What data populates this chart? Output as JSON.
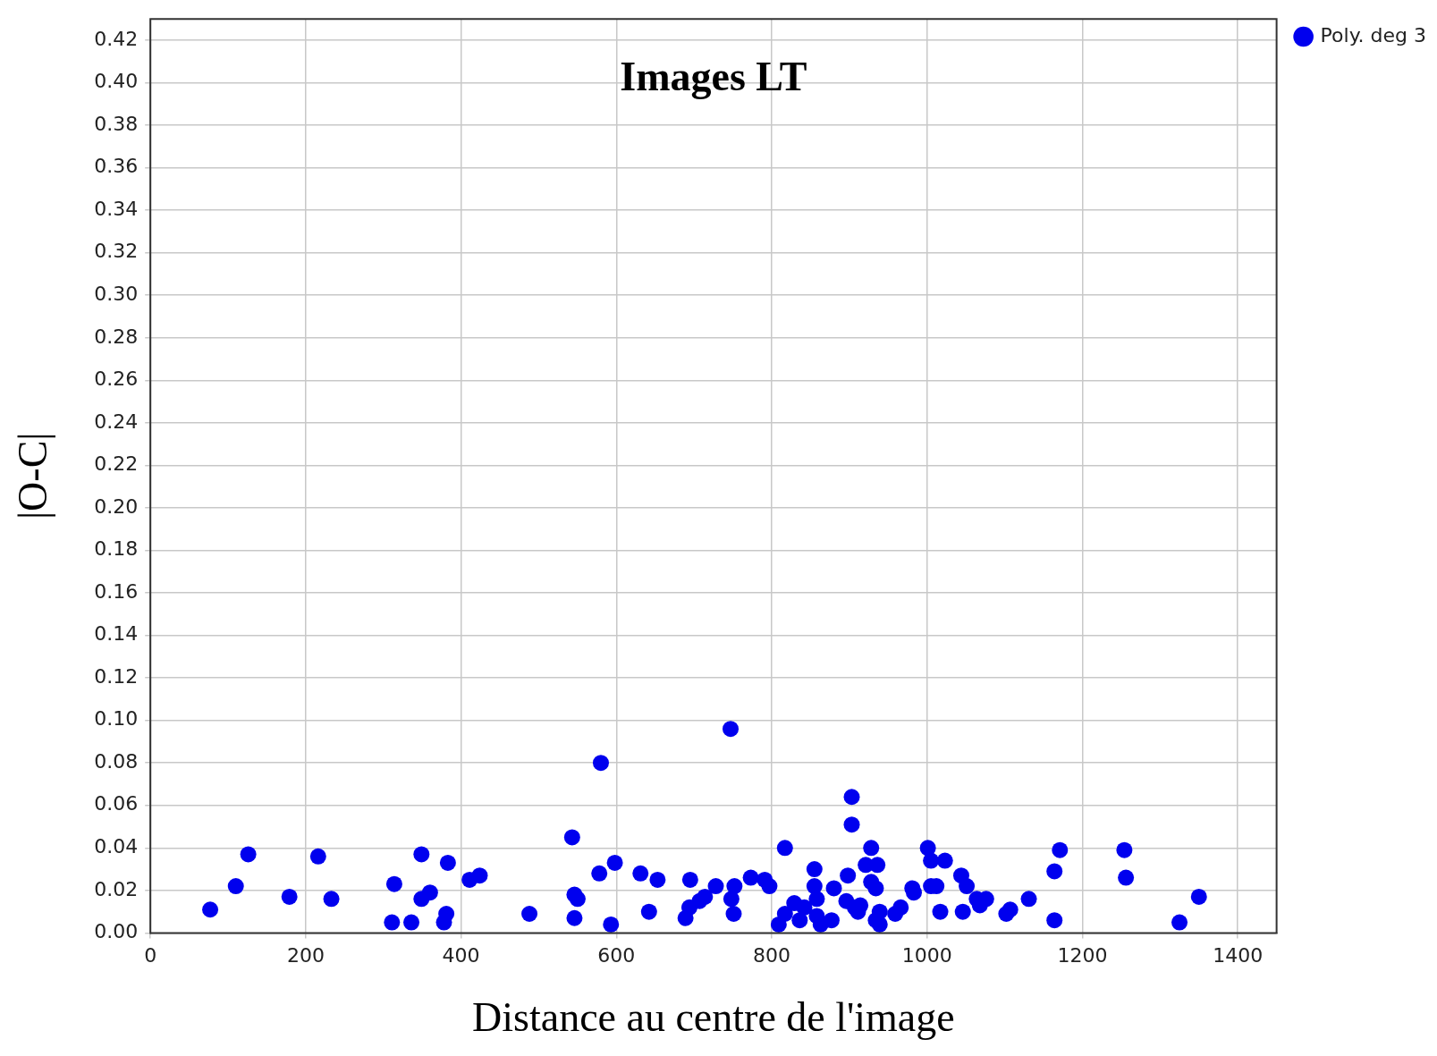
{
  "chart_data": {
    "type": "scatter",
    "title": "Images LT",
    "xlabel": "Distance au centre de l'image",
    "ylabel": "|O-C|",
    "xlim": [
      0,
      1450
    ],
    "xticks": [
      0,
      200,
      400,
      600,
      800,
      1000,
      1200,
      1400
    ],
    "ylim": [
      0,
      0.43
    ],
    "yticks": [
      {
        "value": 0,
        "label": "0.00"
      },
      {
        "value": 0.02,
        "label": "0.02"
      },
      {
        "value": 0.04,
        "label": "0.04"
      },
      {
        "value": 0.06,
        "label": "0.06"
      },
      {
        "value": 0.08,
        "label": "0.08"
      },
      {
        "value": 0.1,
        "label": "0.10"
      },
      {
        "value": 0.12,
        "label": "0.12"
      },
      {
        "value": 0.14,
        "label": "0.14"
      },
      {
        "value": 0.16,
        "label": "0.16"
      },
      {
        "value": 0.18,
        "label": "0.18"
      },
      {
        "value": 0.2,
        "label": "0.20"
      },
      {
        "value": 0.22,
        "label": "0.22"
      },
      {
        "value": 0.24,
        "label": "0.24"
      },
      {
        "value": 0.26,
        "label": "0.26"
      },
      {
        "value": 0.28,
        "label": "0.28"
      },
      {
        "value": 0.3,
        "label": "0.30"
      },
      {
        "value": 0.32,
        "label": "0.32"
      },
      {
        "value": 0.34,
        "label": "0.34"
      },
      {
        "value": 0.36,
        "label": "0.36"
      },
      {
        "value": 0.38,
        "label": "0.38"
      },
      {
        "value": 0.4,
        "label": "0.40"
      },
      {
        "value": 0.42,
        "label": "0.42"
      }
    ],
    "grid": true,
    "legend": "top right",
    "marker": "circle",
    "series": [
      {
        "name": "Poly. deg 3",
        "color": "#0000ee",
        "x": [
          77,
          110,
          126,
          179,
          216,
          233,
          311,
          314,
          336,
          349,
          349,
          360,
          378,
          381,
          383,
          411,
          424,
          488,
          543,
          546,
          546,
          550,
          578,
          580,
          593,
          598,
          631,
          642,
          653,
          689,
          694,
          695,
          707,
          714,
          728,
          747,
          748,
          751,
          752,
          773,
          791,
          797,
          809,
          817,
          817,
          829,
          836,
          842,
          855,
          855,
          858,
          858,
          863,
          877,
          880,
          896,
          898,
          903,
          903,
          907,
          911,
          914,
          921,
          928,
          928,
          934,
          936,
          934,
          939,
          939,
          959,
          966,
          981,
          983,
          1001,
          1005,
          1005,
          1012,
          1017,
          1023,
          1044,
          1046,
          1051,
          1064,
          1068,
          1076,
          1102,
          1107,
          1131,
          1164,
          1164,
          1171,
          1254,
          1256,
          1325,
          1350
        ],
        "values": [
          0.011,
          0.022,
          0.037,
          0.017,
          0.036,
          0.016,
          0.005,
          0.023,
          0.005,
          0.037,
          0.016,
          0.019,
          0.005,
          0.009,
          0.033,
          0.025,
          0.027,
          0.009,
          0.045,
          0.007,
          0.018,
          0.016,
          0.028,
          0.08,
          0.004,
          0.033,
          0.028,
          0.01,
          0.025,
          0.007,
          0.012,
          0.025,
          0.015,
          0.017,
          0.022,
          0.096,
          0.016,
          0.009,
          0.022,
          0.026,
          0.025,
          0.022,
          0.004,
          0.009,
          0.04,
          0.014,
          0.006,
          0.012,
          0.03,
          0.022,
          0.016,
          0.008,
          0.004,
          0.006,
          0.021,
          0.015,
          0.027,
          0.064,
          0.051,
          0.012,
          0.01,
          0.013,
          0.032,
          0.04,
          0.024,
          0.021,
          0.032,
          0.006,
          0.004,
          0.01,
          0.009,
          0.012,
          0.021,
          0.019,
          0.04,
          0.034,
          0.022,
          0.022,
          0.01,
          0.034,
          0.027,
          0.01,
          0.022,
          0.016,
          0.013,
          0.016,
          0.009,
          0.011,
          0.016,
          0.029,
          0.006,
          0.039,
          0.039,
          0.026,
          0.005,
          0.017
        ]
      }
    ]
  }
}
